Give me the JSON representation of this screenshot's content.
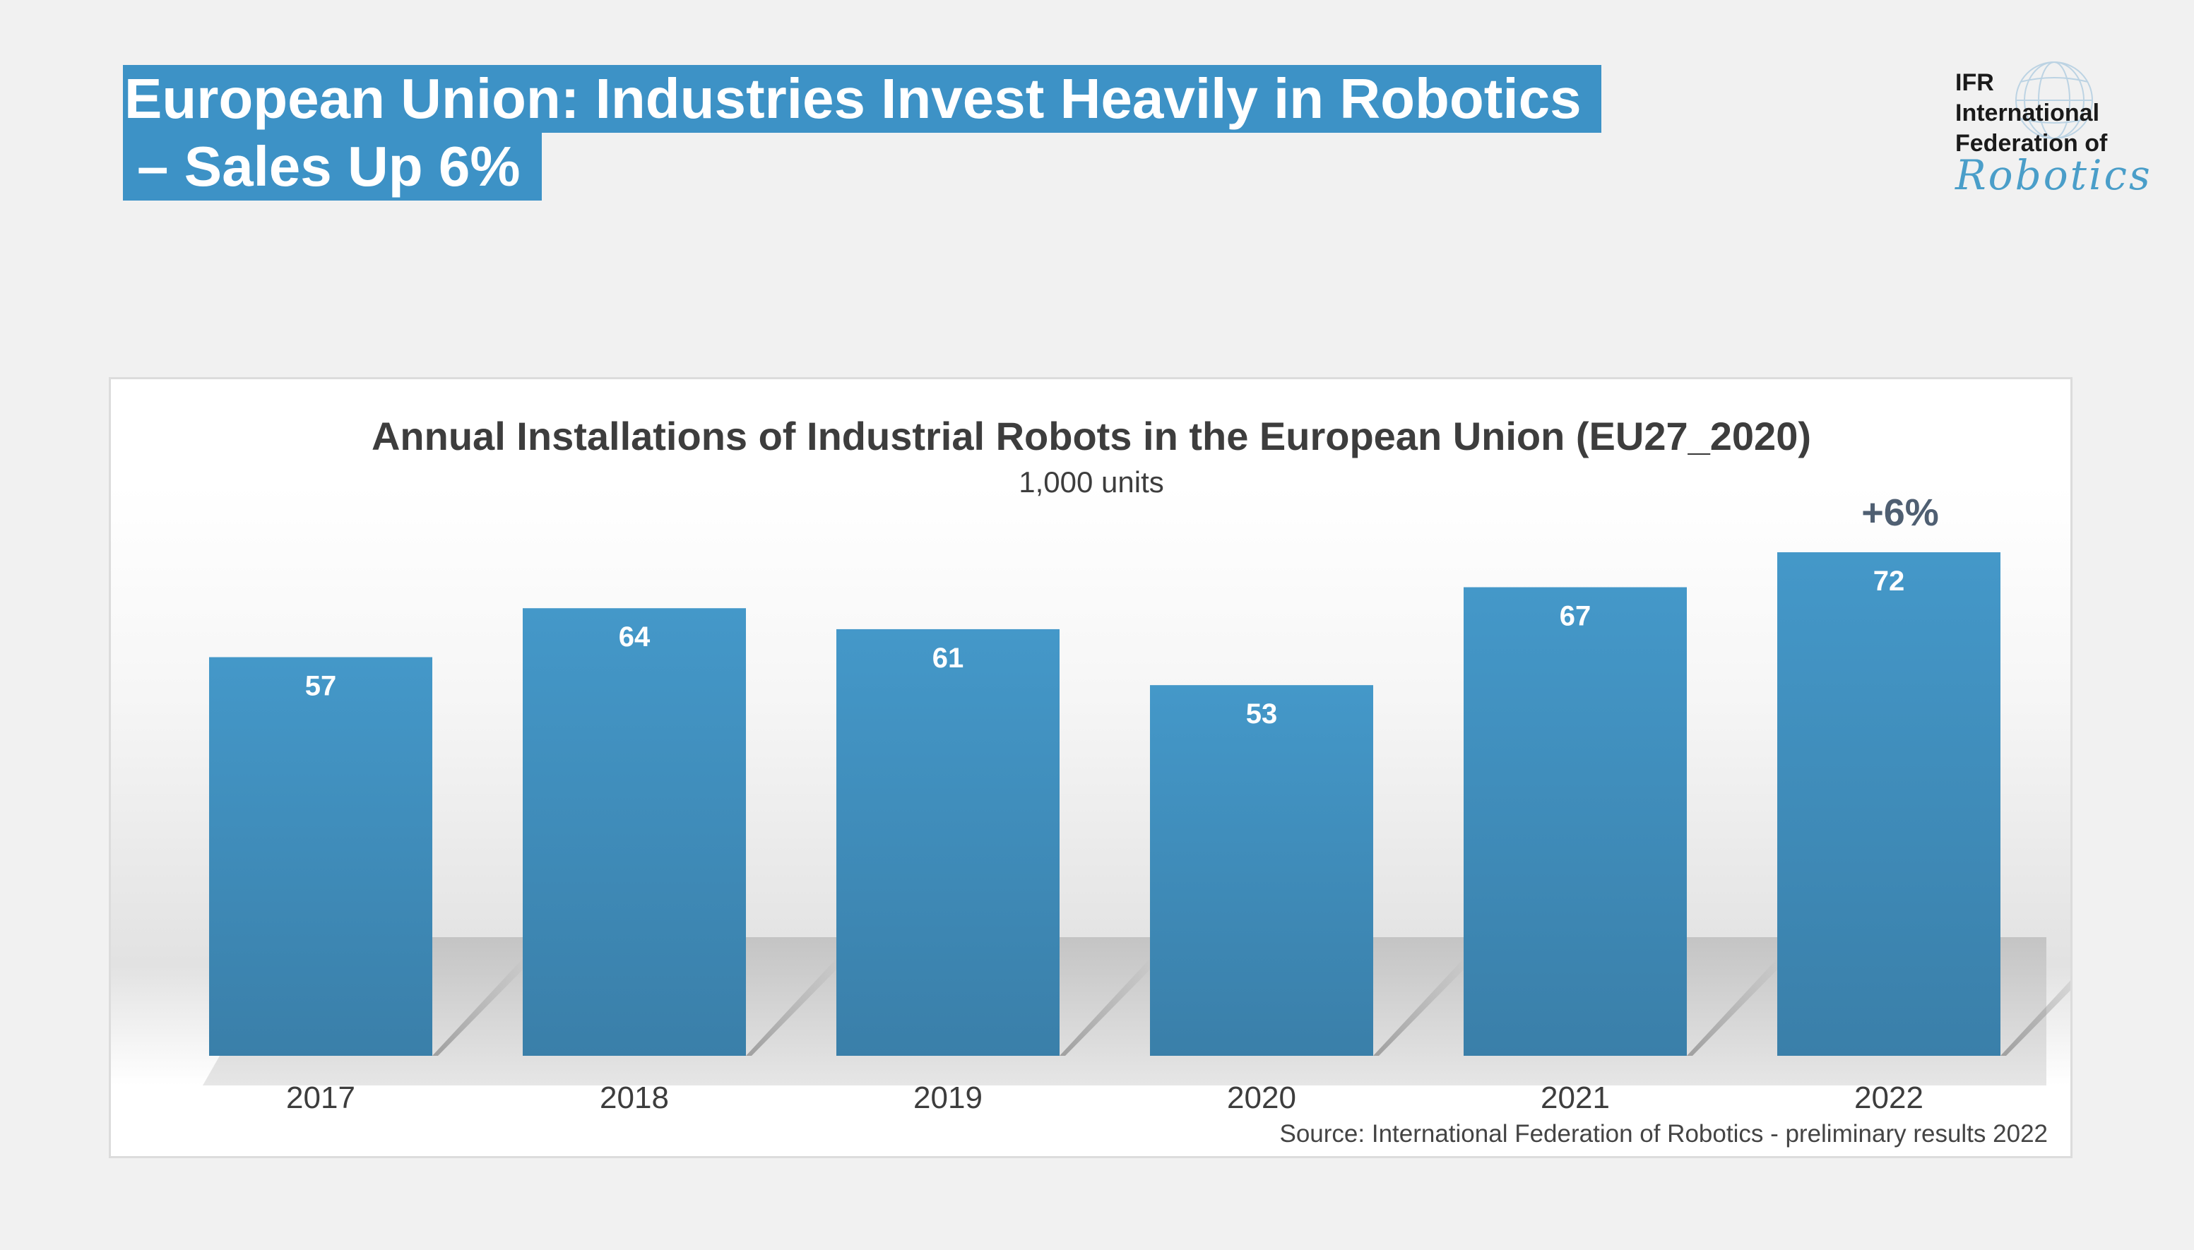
{
  "header": {
    "title_line1": "European Union: Industries Invest Heavily in Robotics",
    "title_line2": "– Sales Up 6%"
  },
  "logo": {
    "line1": "IFR",
    "line2": "International",
    "line3": "Federation of",
    "script": "Robotics",
    "icon": "globe-icon"
  },
  "colors": {
    "accent": "#3d92c6",
    "bar": "#3f8fbf",
    "text_dark": "#3d3d3d",
    "growth": "#4f5f72"
  },
  "chart_data": {
    "type": "bar",
    "title": "Annual Installations of Industrial Robots in the European Union (EU27_2020)",
    "subtitle": "1,000 units",
    "categories": [
      "2017",
      "2018",
      "2019",
      "2020",
      "2021",
      "2022"
    ],
    "values": [
      57,
      64,
      61,
      53,
      67,
      72
    ],
    "annotation": "+6%",
    "source": "Source: International Federation of Robotics - preliminary results 2022",
    "ylim": [
      0,
      72
    ],
    "grid": false,
    "legend": "none"
  }
}
